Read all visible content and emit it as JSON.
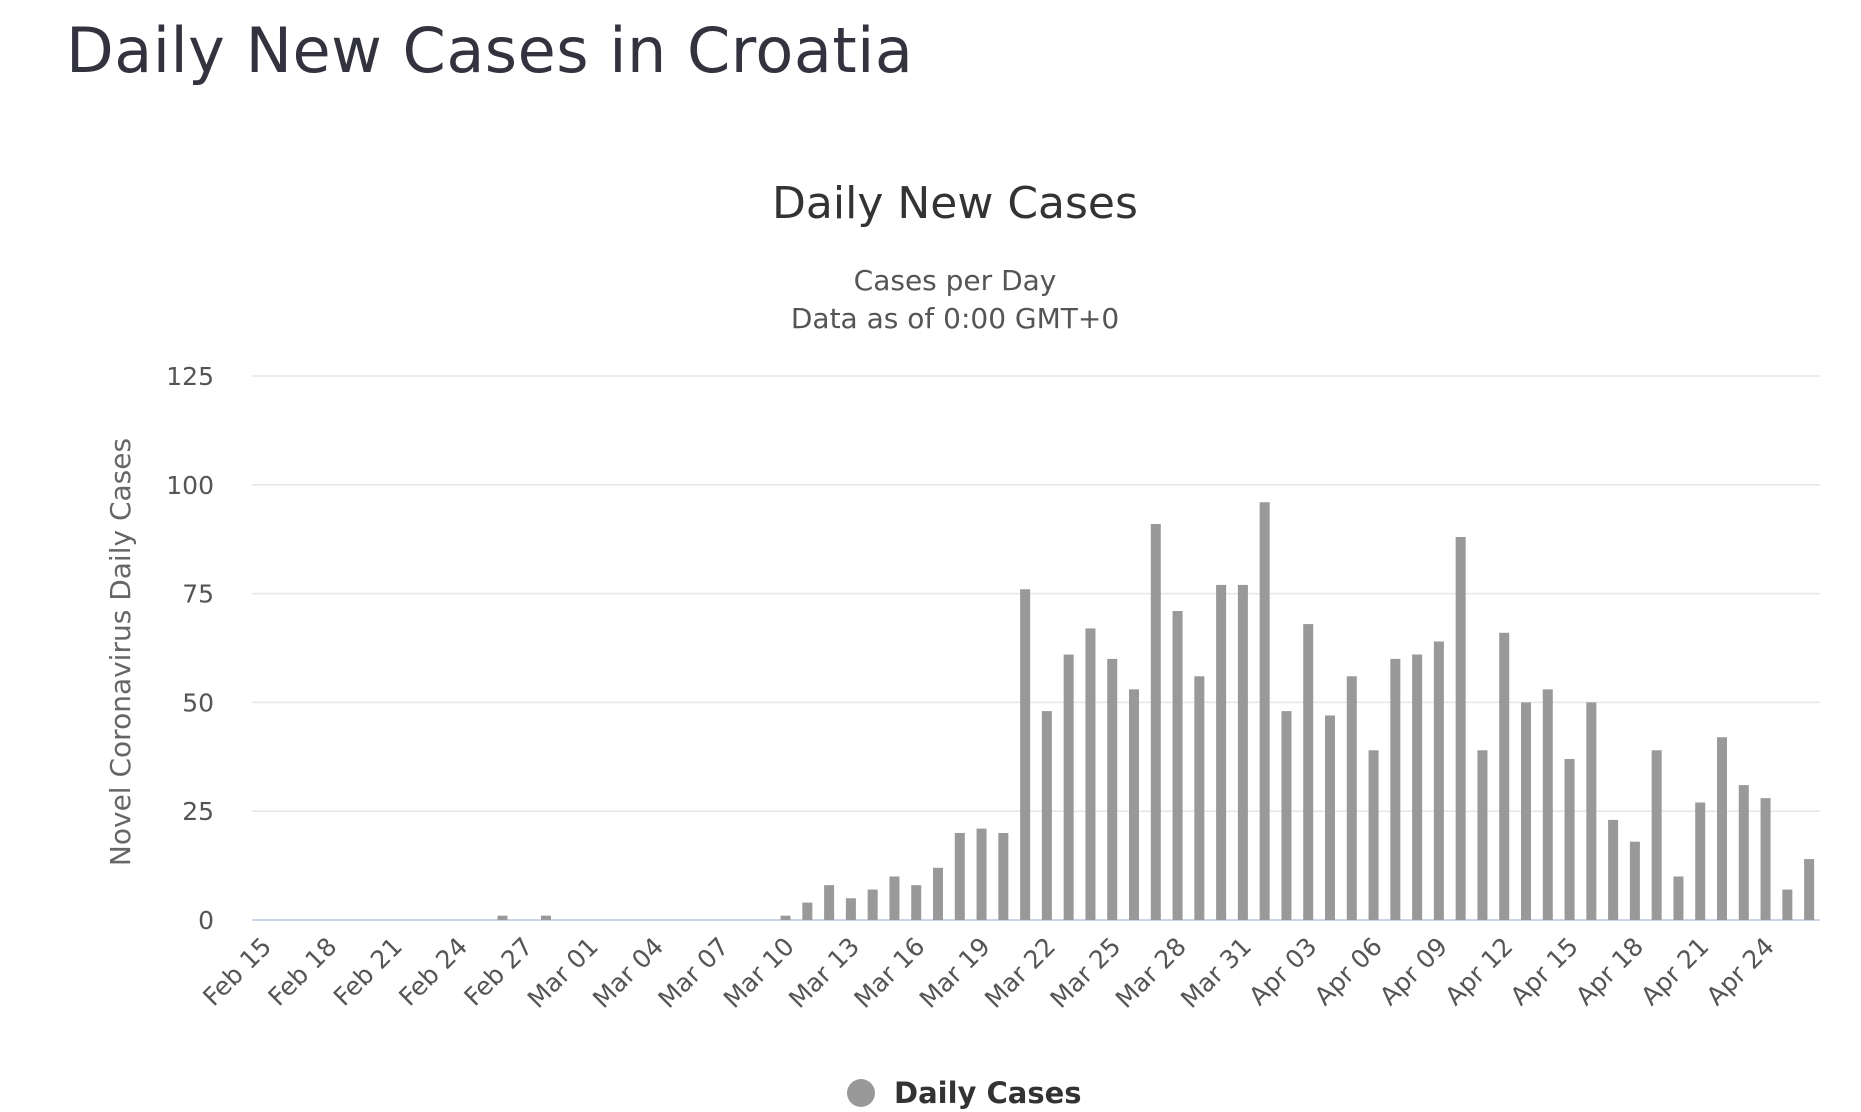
{
  "page": {
    "heading": "Daily New Cases in Croatia"
  },
  "chart_data": {
    "type": "bar",
    "title": "Daily New Cases",
    "subtitle": [
      "Cases per Day",
      "Data as of 0:00 GMT+0"
    ],
    "ylabel": "Novel Coronavirus Daily Cases",
    "xlabel": "",
    "ylim": [
      0,
      125
    ],
    "yticks": [
      "0",
      "25",
      "50",
      "75",
      "100",
      "125"
    ],
    "xtick_labels": [
      "Feb 15",
      "Feb 18",
      "Feb 21",
      "Feb 24",
      "Feb 27",
      "Mar 01",
      "Mar 04",
      "Mar 07",
      "Mar 10",
      "Mar 13",
      "Mar 16",
      "Mar 19",
      "Mar 22",
      "Mar 25",
      "Mar 28",
      "Mar 31",
      "Apr 03",
      "Apr 06",
      "Apr 09",
      "Apr 12",
      "Apr 15",
      "Apr 18",
      "Apr 21",
      "Apr 24"
    ],
    "grid": true,
    "legend_position": "bottom-center",
    "color": "#999999",
    "categories": [
      "Feb 15",
      "Feb 16",
      "Feb 17",
      "Feb 18",
      "Feb 19",
      "Feb 20",
      "Feb 21",
      "Feb 22",
      "Feb 23",
      "Feb 24",
      "Feb 25",
      "Feb 26",
      "Feb 27",
      "Feb 28",
      "Feb 29",
      "Mar 01",
      "Mar 02",
      "Mar 03",
      "Mar 04",
      "Mar 05",
      "Mar 06",
      "Mar 07",
      "Mar 08",
      "Mar 09",
      "Mar 10",
      "Mar 11",
      "Mar 12",
      "Mar 13",
      "Mar 14",
      "Mar 15",
      "Mar 16",
      "Mar 17",
      "Mar 18",
      "Mar 19",
      "Mar 20",
      "Mar 21",
      "Mar 22",
      "Mar 23",
      "Mar 24",
      "Mar 25",
      "Mar 26",
      "Mar 27",
      "Mar 28",
      "Mar 29",
      "Mar 30",
      "Mar 31",
      "Apr 01",
      "Apr 02",
      "Apr 03",
      "Apr 04",
      "Apr 05",
      "Apr 06",
      "Apr 07",
      "Apr 08",
      "Apr 09",
      "Apr 10",
      "Apr 11",
      "Apr 12",
      "Apr 13",
      "Apr 14",
      "Apr 15",
      "Apr 16",
      "Apr 17",
      "Apr 18",
      "Apr 19",
      "Apr 20",
      "Apr 21",
      "Apr 22",
      "Apr 23",
      "Apr 24",
      "Apr 25",
      "Apr 26"
    ],
    "series": [
      {
        "name": "Daily Cases",
        "values": [
          0,
          0,
          0,
          0,
          0,
          0,
          0,
          0,
          0,
          0,
          0,
          1,
          0,
          1,
          0,
          0,
          0,
          0,
          0,
          0,
          0,
          0,
          0,
          0,
          1,
          4,
          8,
          5,
          7,
          10,
          8,
          12,
          20,
          21,
          20,
          76,
          48,
          61,
          67,
          60,
          53,
          91,
          71,
          56,
          77,
          77,
          96,
          48,
          68,
          47,
          56,
          39,
          60,
          61,
          64,
          88,
          39,
          66,
          50,
          53,
          37,
          50,
          23,
          18,
          39,
          10,
          27,
          42,
          31,
          28,
          7,
          14
        ]
      }
    ]
  }
}
